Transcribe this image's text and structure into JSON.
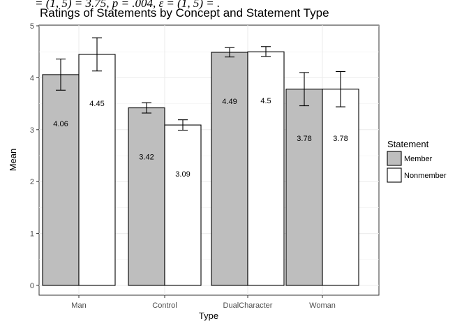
{
  "top_caption": "= (1, 5) = 3.75, p = .004, ε = (1, 5) = .",
  "chart_data": {
    "type": "bar",
    "title": "Ratings of Statements by Concept and Statement Type",
    "xlabel": "Type",
    "ylabel": "Mean",
    "ylim": [
      0,
      5
    ],
    "yticks": [
      "0",
      "1",
      "2",
      "3",
      "4",
      "5"
    ],
    "categories": [
      "Man",
      "Control",
      "DualCharacter",
      "Woman"
    ],
    "series": [
      {
        "name": "Member",
        "color": "#bebebe",
        "values": [
          4.06,
          3.42,
          4.49,
          3.78
        ],
        "labels": [
          "4.06",
          "3.42",
          "4.49",
          "3.78"
        ],
        "err_low": [
          3.76,
          3.32,
          4.4,
          3.46
        ],
        "err_high": [
          4.36,
          3.52,
          4.58,
          4.1
        ]
      },
      {
        "name": "Nonmember",
        "color": "#ffffff",
        "values": [
          4.45,
          3.09,
          4.5,
          3.78
        ],
        "labels": [
          "4.45",
          "3.09",
          "4.5",
          "3.78"
        ],
        "err_low": [
          4.13,
          2.99,
          4.41,
          3.44
        ],
        "err_high": [
          4.77,
          3.19,
          4.6,
          4.12
        ]
      }
    ],
    "legend": {
      "title": "Statement",
      "position": "right"
    },
    "grid": true
  }
}
